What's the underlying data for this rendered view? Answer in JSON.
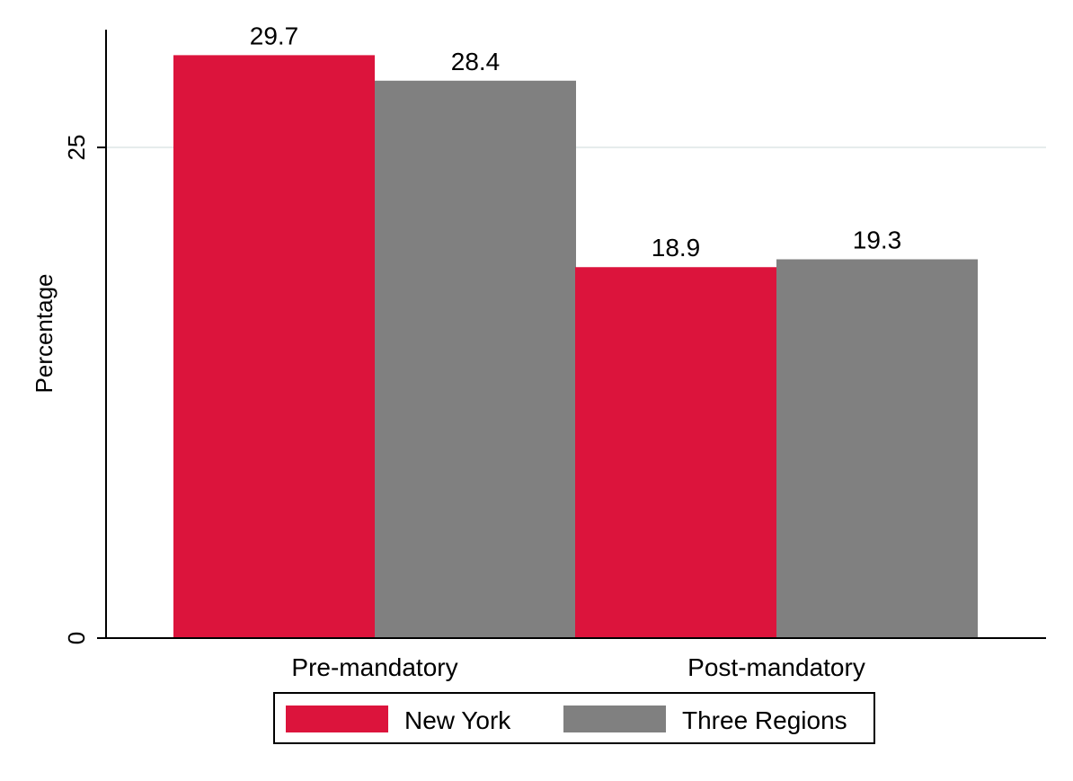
{
  "chart_data": {
    "type": "bar",
    "categories": [
      "Pre-mandatory",
      "Post-mandatory"
    ],
    "series": [
      {
        "name": "New York",
        "values": [
          29.7,
          18.9
        ],
        "labels": [
          "29.7",
          "18.9"
        ],
        "color": "#DC143C"
      },
      {
        "name": "Three Regions",
        "values": [
          28.4,
          19.3
        ],
        "labels": [
          "28.4",
          "19.3"
        ],
        "color": "#808080"
      }
    ],
    "ylabel": "Percentage",
    "ylim": [
      0,
      31
    ],
    "yticks": [
      0,
      25
    ],
    "ytick_labels": [
      "0",
      "25"
    ],
    "grid": true,
    "legend": {
      "position": "bottom"
    }
  }
}
